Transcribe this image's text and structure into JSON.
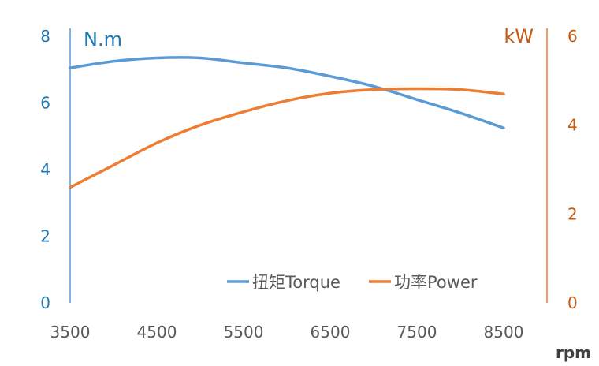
{
  "chart_data": {
    "type": "line",
    "x_unit": "rpm",
    "x_ticks": [
      3500,
      4500,
      5500,
      6500,
      7500,
      8500
    ],
    "xlim": [
      3500,
      9000
    ],
    "left_axis": {
      "unit": "N.m",
      "ticks": [
        0,
        2,
        4,
        6,
        8
      ],
      "ylim": [
        0,
        8
      ],
      "color": "#1f77b4"
    },
    "right_axis": {
      "unit": "kW",
      "ticks": [
        0,
        2,
        4,
        6
      ],
      "ylim": [
        0,
        6
      ],
      "color": "#c55a11"
    },
    "series": [
      {
        "name": "扭矩Torque",
        "axis": "left",
        "color": "#5b9bd5",
        "x": [
          3500,
          4000,
          4500,
          5000,
          5500,
          6000,
          6500,
          7000,
          7500,
          8000,
          8500
        ],
        "values": [
          7.05,
          7.25,
          7.35,
          7.35,
          7.2,
          7.05,
          6.8,
          6.5,
          6.1,
          5.7,
          5.25
        ]
      },
      {
        "name": "功率Power",
        "axis": "right",
        "color": "#ed7d31",
        "x": [
          3500,
          4000,
          4500,
          5000,
          5500,
          6000,
          6500,
          7000,
          7500,
          8000,
          8500
        ],
        "values": [
          2.6,
          3.1,
          3.6,
          4.0,
          4.3,
          4.55,
          4.72,
          4.8,
          4.82,
          4.8,
          4.7
        ]
      }
    ],
    "grid": false,
    "legend_position": "bottom-right"
  }
}
